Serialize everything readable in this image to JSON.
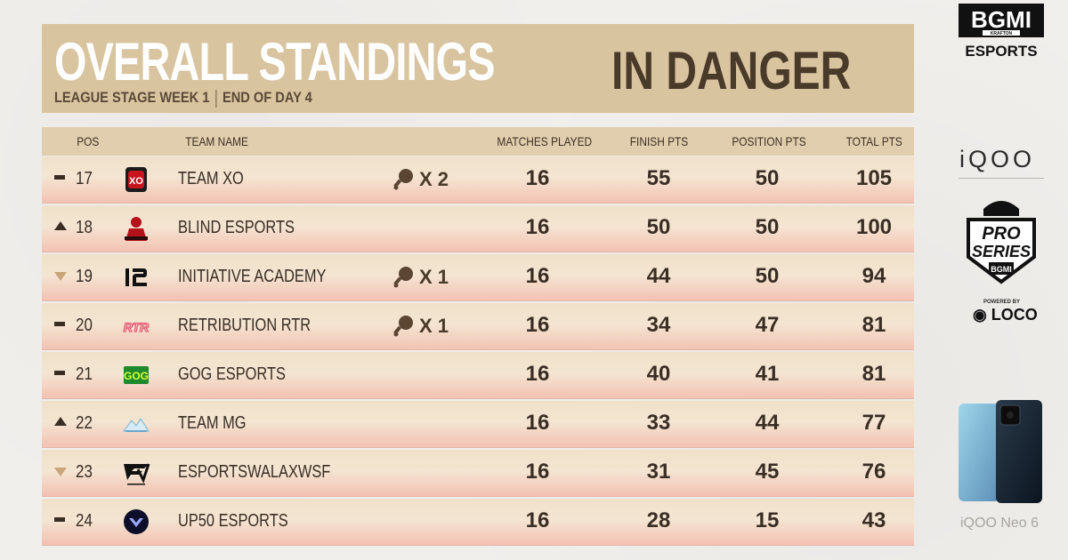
{
  "header": {
    "title": "OVERALL STANDINGS",
    "stage": "LEAGUE STAGE WEEK 1",
    "day": "END OF DAY 4",
    "tag": "IN DANGER"
  },
  "columns": {
    "pos": "POS",
    "team": "TEAM NAME",
    "matches": "MATCHES PLAYED",
    "finish": "FINISH PTS",
    "position": "POSITION PTS",
    "total": "TOTAL PTS"
  },
  "rows": [
    {
      "change": "same",
      "pos": "17",
      "team": "TEAM XO",
      "logo": "team-xo-logo",
      "chicken": "X 2",
      "matches": "16",
      "finish": "55",
      "position": "50",
      "total": "105"
    },
    {
      "change": "up",
      "pos": "18",
      "team": "BLIND ESPORTS",
      "logo": "blind-esports-logo",
      "chicken": "",
      "matches": "16",
      "finish": "50",
      "position": "50",
      "total": "100"
    },
    {
      "change": "down",
      "pos": "19",
      "team": "INITIATIVE ACADEMY",
      "logo": "initiative-logo",
      "chicken": "X 1",
      "matches": "16",
      "finish": "44",
      "position": "50",
      "total": "94"
    },
    {
      "change": "same",
      "pos": "20",
      "team": "RETRIBUTION RTR",
      "logo": "rtr-logo",
      "chicken": "X 1",
      "matches": "16",
      "finish": "34",
      "position": "47",
      "total": "81"
    },
    {
      "change": "same",
      "pos": "21",
      "team": "GOG ESPORTS",
      "logo": "gog-logo",
      "chicken": "",
      "matches": "16",
      "finish": "40",
      "position": "41",
      "total": "81"
    },
    {
      "change": "up",
      "pos": "22",
      "team": "TEAM MG",
      "logo": "team-mg-logo",
      "chicken": "",
      "matches": "16",
      "finish": "33",
      "position": "44",
      "total": "77"
    },
    {
      "change": "down",
      "pos": "23",
      "team": "ESPORTSWALAXWSF",
      "logo": "esportswala-logo",
      "chicken": "",
      "matches": "16",
      "finish": "31",
      "position": "45",
      "total": "76"
    },
    {
      "change": "same",
      "pos": "24",
      "team": "UP50 ESPORTS",
      "logo": "up50-logo",
      "chicken": "",
      "matches": "16",
      "finish": "28",
      "position": "15",
      "total": "43"
    }
  ],
  "sidebar": {
    "bgmi_top": "BGMI",
    "bgmi_krafton": "KRAFTON",
    "bgmi_esports": "ESPORTS",
    "sponsor": "iQOO",
    "pro_label": "PRO",
    "series_label": "SERIES",
    "series_bgmi": "BGMI",
    "powered_by": "POWERED BY",
    "loco": "LOCO",
    "phone_label": "iQOO Neo 6"
  },
  "colors": {
    "header_bg": "#d9c4a0",
    "row_light": "#f4e5d2",
    "row_pink": "#f3c2b3",
    "text_dark": "#3a2e24"
  }
}
